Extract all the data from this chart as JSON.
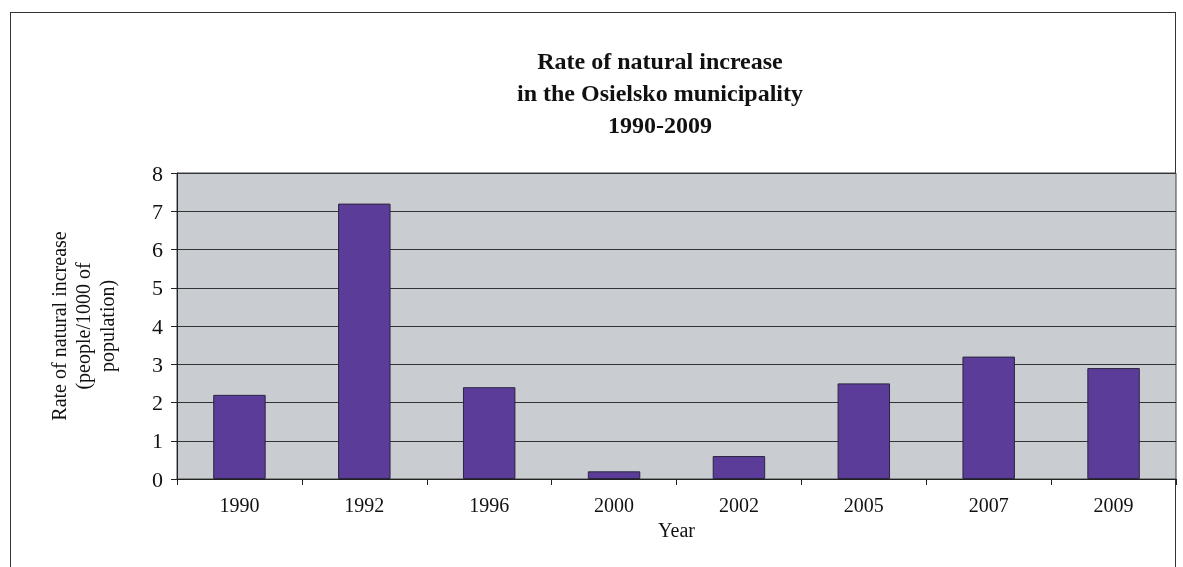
{
  "chart_data": {
    "type": "bar",
    "title": "Rate of natural increase\nin the Osielsko municipality\n1990-2009",
    "xlabel": "Year",
    "ylabel": "Rate of natural increase\n(people/1000 of\npopulation)",
    "categories": [
      "1990",
      "1992",
      "1996",
      "2000",
      "2002",
      "2005",
      "2007",
      "2009"
    ],
    "values": [
      2.2,
      7.2,
      2.4,
      0.2,
      0.6,
      2.5,
      3.2,
      2.9
    ],
    "color": "#5b3c98",
    "ylim": [
      0,
      8
    ],
    "yticks": [
      0,
      1,
      2,
      3,
      4,
      5,
      6,
      7,
      8
    ],
    "grid": "y"
  }
}
